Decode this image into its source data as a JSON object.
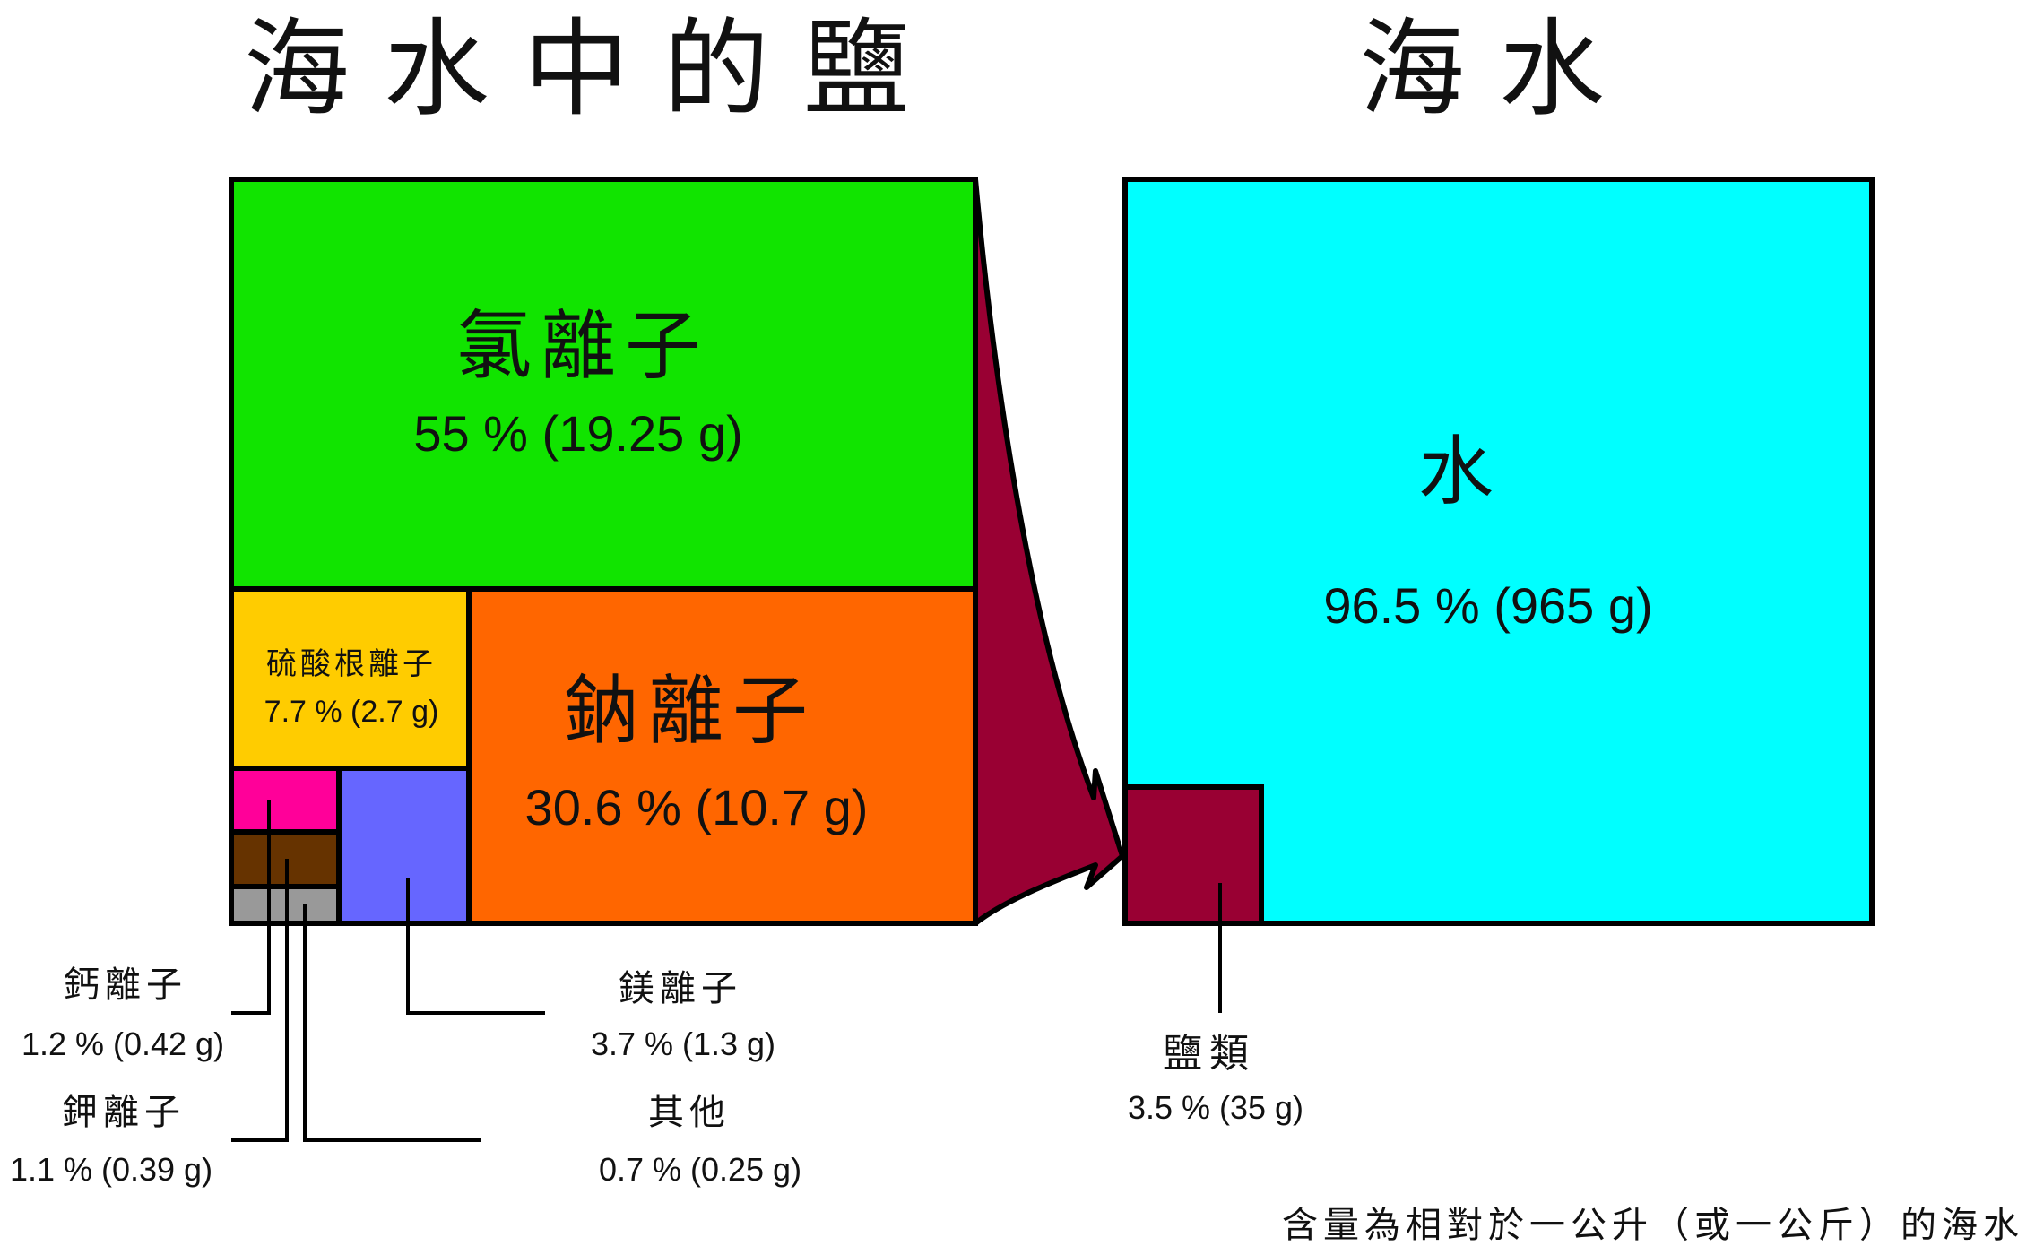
{
  "titles": {
    "salt": "海水中的鹽",
    "seawater": "海水"
  },
  "salt_breakdown": {
    "chloride": {
      "name": "氯離子",
      "value": "55 % (19.25 g)",
      "color": "#11e400"
    },
    "sodium": {
      "name": "鈉離子",
      "value": "30.6 % (10.7 g)",
      "color": "#ff6600"
    },
    "sulfate": {
      "name": "硫酸根離子",
      "value": "7.7 % (2.7 g)",
      "color": "#ffcc00"
    },
    "magnesium": {
      "name": "鎂離子",
      "value": "3.7 % (1.3 g)",
      "color": "#6666ff"
    },
    "calcium": {
      "name": "鈣離子",
      "value": "1.2 % (0.42 g)",
      "color": "#ff0099"
    },
    "potassium": {
      "name": "鉀離子",
      "value": "1.1 % (0.39 g)",
      "color": "#663300"
    },
    "other": {
      "name": "其他",
      "value": "0.7 % (0.25 g)",
      "color": "#999999"
    }
  },
  "seawater_breakdown": {
    "water": {
      "name": "水",
      "value": "96.5 % (965 g)",
      "color": "#00ffff"
    },
    "salts": {
      "name": "鹽類",
      "value": "3.5 % (35 g)",
      "color": "#990033"
    }
  },
  "arrow_color": "#990033",
  "footnote": "含量為相對於一公升（或一公斤）的海水"
}
